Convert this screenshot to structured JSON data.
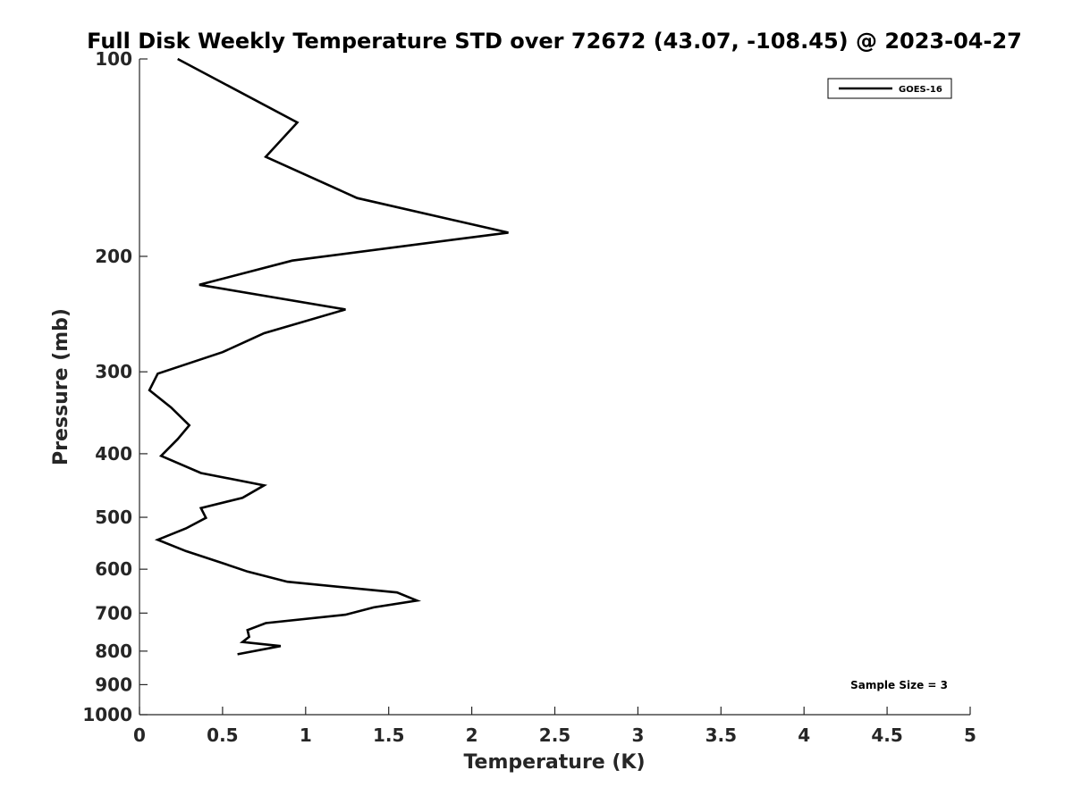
{
  "chart_data": {
    "type": "line",
    "title": "Full Disk Weekly Temperature STD over 72672 (43.07, -108.45) @ 2023-04-27",
    "xlabel": "Temperature (K)",
    "ylabel": "Pressure (mb)",
    "xlim": [
      0,
      5
    ],
    "ylim": [
      100,
      1000
    ],
    "y_scale": "log",
    "y_reversed": true,
    "x_ticks": [
      "0",
      "0.5",
      "1",
      "1.5",
      "2",
      "2.5",
      "3",
      "3.5",
      "4",
      "4.5",
      "5"
    ],
    "y_ticks": [
      "100",
      "200",
      "300",
      "400",
      "500",
      "600",
      "700",
      "800",
      "900",
      "1000"
    ],
    "grid": false,
    "legend": {
      "location": "top-right",
      "entries": [
        "GOES-16"
      ]
    },
    "annotation": "Sample Size = 3",
    "series": [
      {
        "name": "GOES-16",
        "color": "#000000",
        "points": [
          [
            0.23,
            100
          ],
          [
            0.95,
            125
          ],
          [
            0.76,
            141
          ],
          [
            1.31,
            163
          ],
          [
            2.22,
            184
          ],
          [
            0.92,
            203
          ],
          [
            0.36,
            221
          ],
          [
            1.24,
            241
          ],
          [
            0.75,
            262
          ],
          [
            0.5,
            280
          ],
          [
            0.11,
            302
          ],
          [
            0.06,
            320
          ],
          [
            0.19,
            340
          ],
          [
            0.3,
            362
          ],
          [
            0.23,
            380
          ],
          [
            0.13,
            403
          ],
          [
            0.37,
            428
          ],
          [
            0.75,
            447
          ],
          [
            0.62,
            467
          ],
          [
            0.37,
            484
          ],
          [
            0.4,
            501
          ],
          [
            0.28,
            520
          ],
          [
            0.11,
            541
          ],
          [
            0.28,
            563
          ],
          [
            0.48,
            585
          ],
          [
            0.65,
            605
          ],
          [
            0.89,
            627
          ],
          [
            1.55,
            651
          ],
          [
            1.67,
            670
          ],
          [
            1.41,
            686
          ],
          [
            1.24,
            704
          ],
          [
            0.76,
            725
          ],
          [
            0.65,
            743
          ],
          [
            0.66,
            761
          ],
          [
            0.62,
            775
          ],
          [
            0.85,
            786
          ],
          [
            0.59,
            809
          ]
        ]
      }
    ]
  }
}
